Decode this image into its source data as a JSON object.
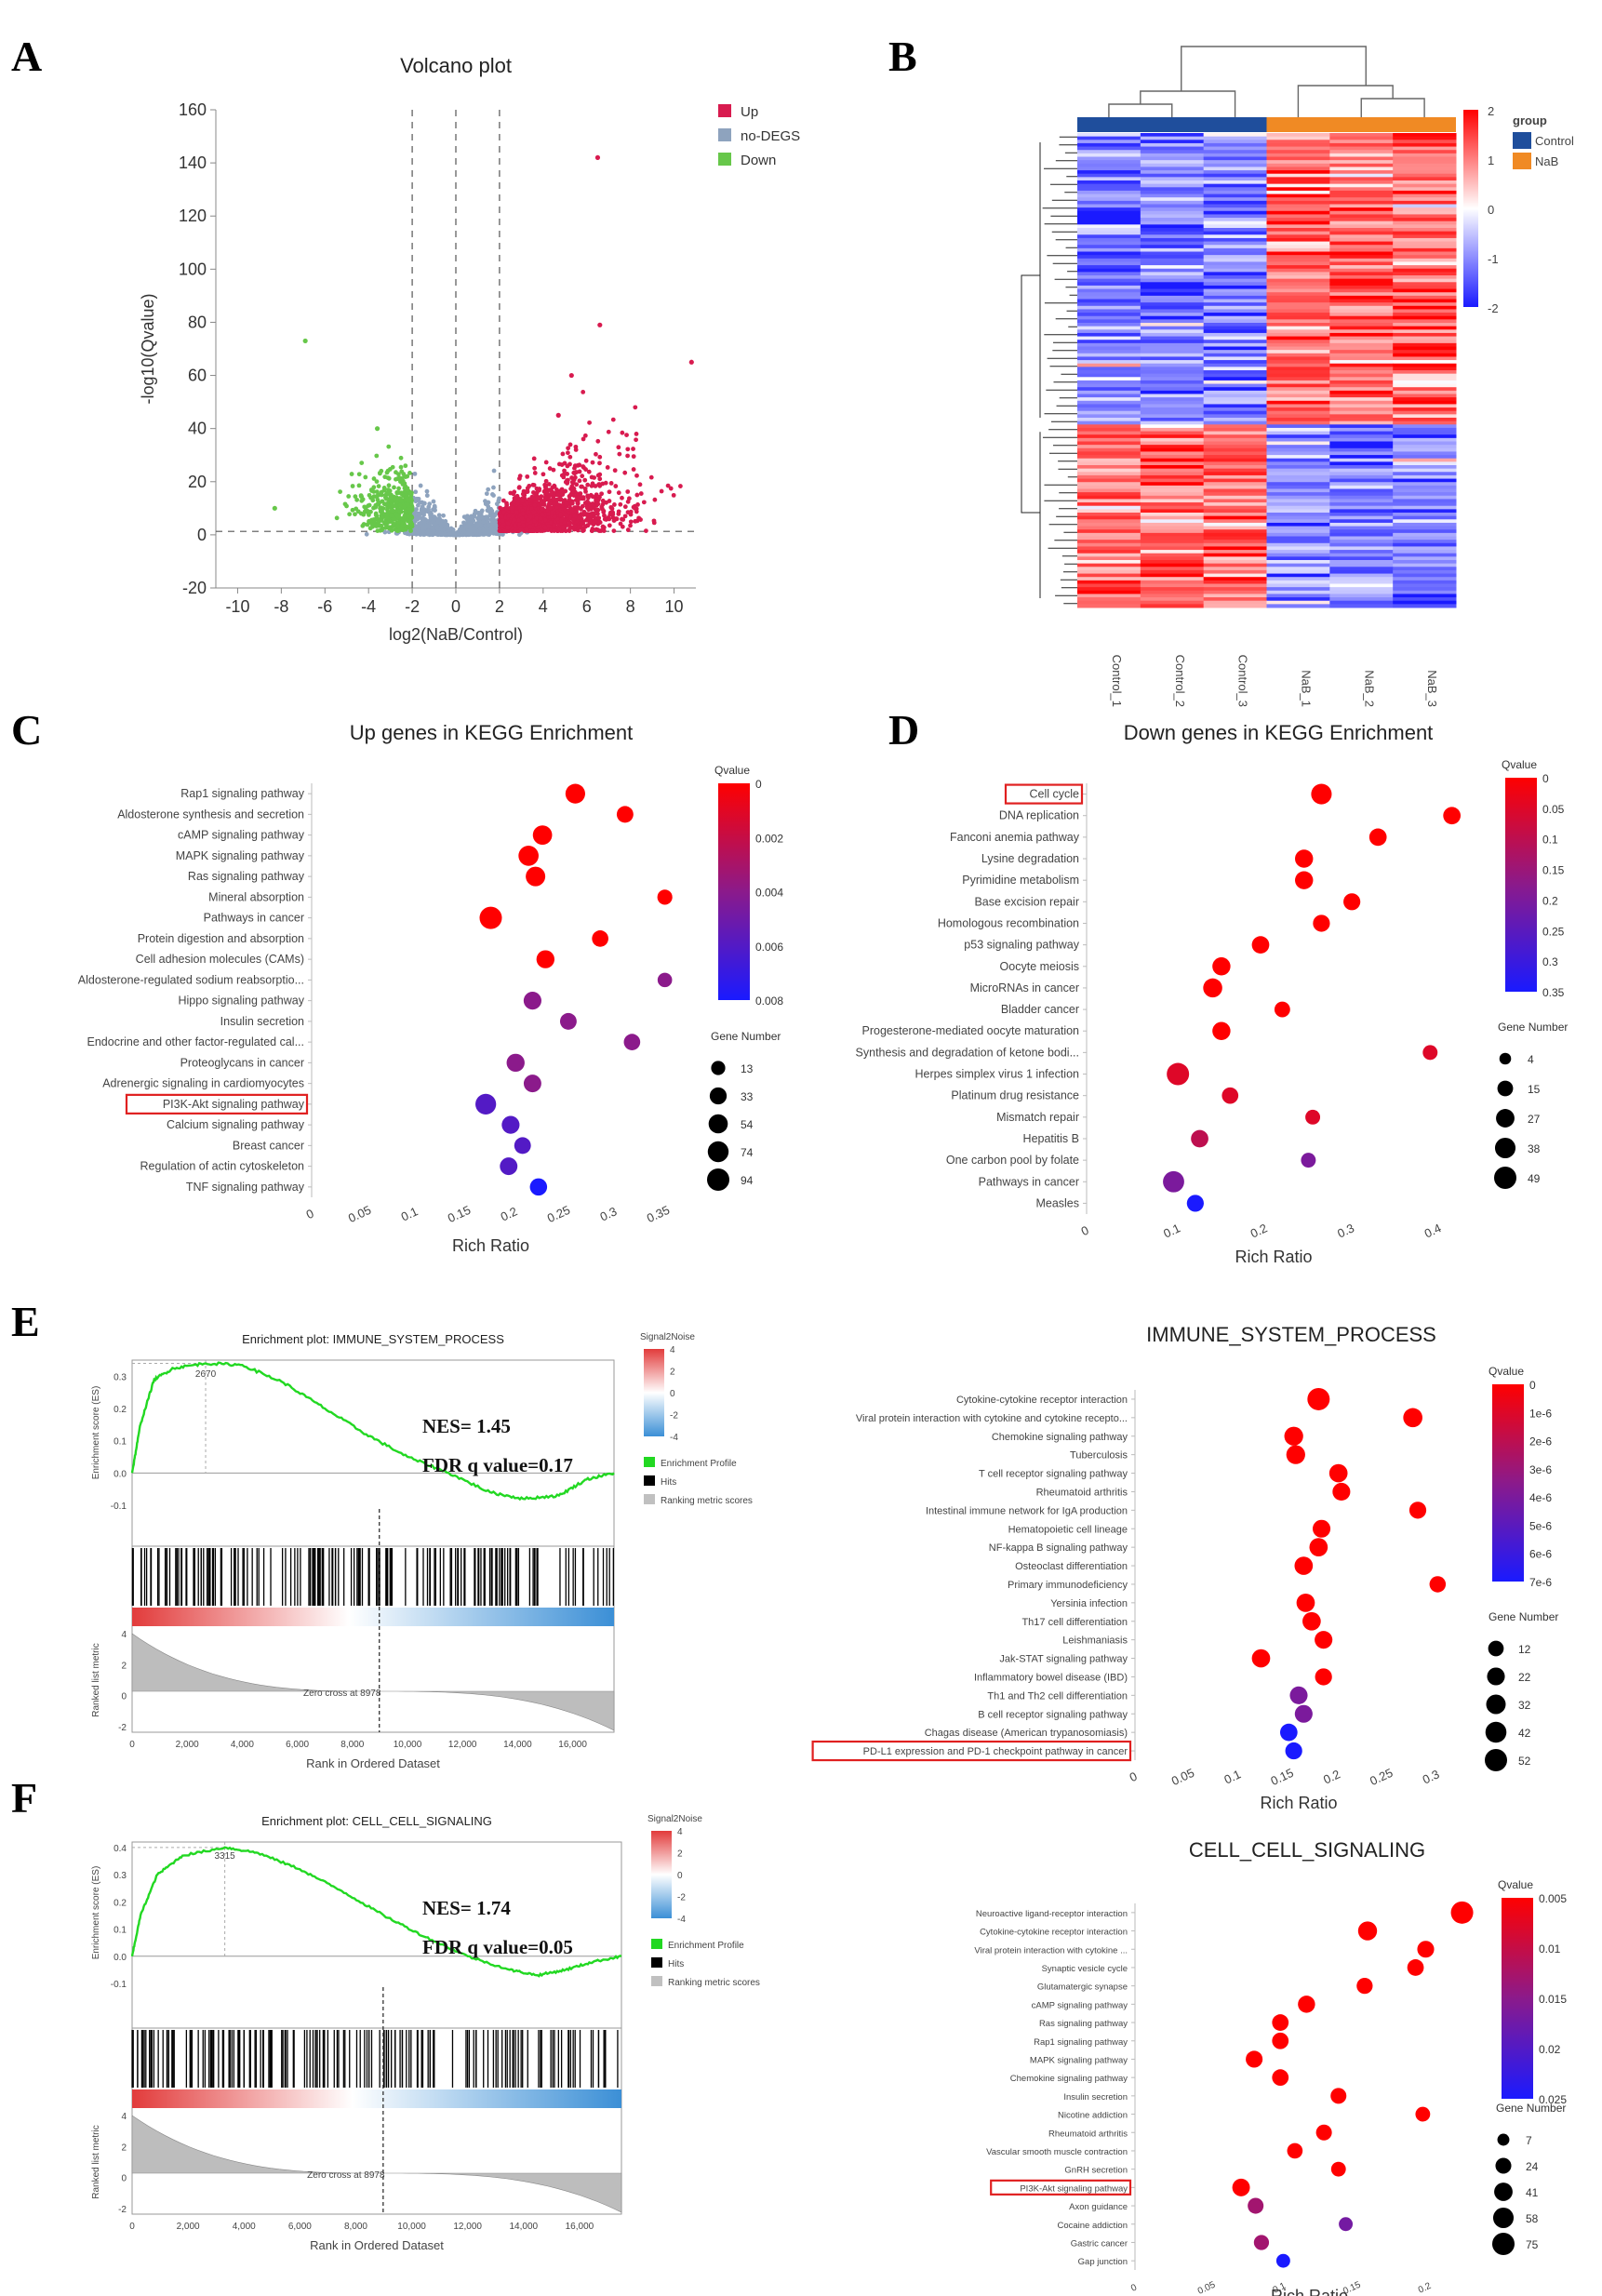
{
  "panels": [
    "A",
    "B",
    "C",
    "D",
    "E",
    "F"
  ],
  "chart_data": [
    {
      "id": "A",
      "type": "scatter",
      "title": "Volcano plot",
      "xlabel": "log2(NaB/Control)",
      "ylabel": "-log10(Qvalue)",
      "xlim": [
        -11,
        11
      ],
      "ylim": [
        -20,
        160
      ],
      "xticks": [
        -10,
        -8,
        -6,
        -4,
        -2,
        0,
        2,
        4,
        6,
        8,
        10
      ],
      "yticks": [
        -20,
        0,
        20,
        40,
        60,
        80,
        100,
        120,
        140,
        160
      ],
      "thresholds": {
        "x": [
          -2,
          2
        ],
        "y": 1.3,
        "center_x": 0
      },
      "legend": [
        {
          "label": "Up",
          "color": "#d81b4f"
        },
        {
          "label": "no-DEGS",
          "color": "#8ea3be"
        },
        {
          "label": "Down",
          "color": "#67c74a"
        }
      ],
      "outliers": {
        "up": [
          [
            6.5,
            142
          ],
          [
            6.6,
            79
          ],
          [
            10.8,
            65
          ],
          [
            5.3,
            60
          ],
          [
            4.7,
            45
          ]
        ],
        "down": [
          [
            -6.9,
            73
          ],
          [
            -3.6,
            40
          ],
          [
            -8.3,
            10
          ]
        ]
      }
    },
    {
      "id": "B",
      "type": "heatmap",
      "columns": [
        "Control_1",
        "Control_2",
        "Control_3",
        "NaB_1",
        "NaB_2",
        "NaB_3"
      ],
      "groups": [
        {
          "label": "Control",
          "color": "#1f4e9c"
        },
        {
          "label": "NaB",
          "color": "#f08a24"
        }
      ],
      "group_title": "group",
      "scale": {
        "min": -2,
        "max": 2,
        "ticks": [
          2,
          1,
          0,
          -1,
          -2
        ],
        "low": "#1a1aff",
        "mid": "#ffffff",
        "high": "#ff0000"
      }
    },
    {
      "id": "C",
      "type": "scatter",
      "title": "Up genes in KEGG Enrichment",
      "xlabel": "Rich Ratio",
      "xlim": [
        0,
        0.36
      ],
      "xticks": [
        0,
        0.05,
        0.1,
        0.15,
        0.2,
        0.25,
        0.3,
        0.35
      ],
      "categories": [
        "Rap1 signaling pathway",
        "Aldosterone synthesis and secretion",
        "cAMP signaling pathway",
        "MAPK signaling pathway",
        "Ras signaling pathway",
        "Mineral absorption",
        "Pathways in cancer",
        "Protein digestion and absorption",
        "Cell adhesion molecules (CAMs)",
        "Aldosterone-regulated sodium reabsorptio...",
        "Hippo signaling pathway",
        "Insulin secretion",
        "Endocrine and other factor-regulated cal...",
        "Proteoglycans in cancer",
        "Adrenergic signaling in cardiomyocytes",
        "PI3K-Akt signaling pathway",
        "Calcium signaling pathway",
        "Breast cancer",
        "Regulation of actin cytoskeleton",
        "TNF signaling pathway"
      ],
      "x": [
        0.265,
        0.315,
        0.232,
        0.218,
        0.225,
        0.355,
        0.18,
        0.29,
        0.235,
        0.355,
        0.222,
        0.258,
        0.322,
        0.205,
        0.222,
        0.175,
        0.2,
        0.212,
        0.198,
        0.228
      ],
      "size": [
        60,
        30,
        55,
        65,
        58,
        18,
        94,
        28,
        42,
        15,
        40,
        30,
        28,
        42,
        38,
        72,
        40,
        30,
        38,
        35
      ],
      "qvalue": [
        0,
        0,
        0,
        0,
        0,
        0,
        0,
        0,
        0,
        0.004,
        0.004,
        0.004,
        0.004,
        0.004,
        0.004,
        0.006,
        0.006,
        0.006,
        0.006,
        0.008
      ],
      "highlight": "PI3K-Akt signaling pathway",
      "qvalue_scale": {
        "ticks": [
          "0",
          "0.002",
          "0.004",
          "0.006",
          "0.008"
        ],
        "title": "Qvalue"
      },
      "size_legend": {
        "title": "Gene Number",
        "values": [
          13,
          33,
          54,
          74,
          94
        ]
      }
    },
    {
      "id": "D",
      "type": "scatter",
      "title": "Down genes in KEGG Enrichment",
      "xlabel": "Rich Ratio",
      "xlim": [
        0,
        0.43
      ],
      "xticks": [
        0,
        0.1,
        0.2,
        0.3,
        0.4
      ],
      "categories": [
        "Cell cycle",
        "DNA replication",
        "Fanconi anemia pathway",
        "Lysine degradation",
        "Pyrimidine metabolism",
        "Base excision repair",
        "Homologous recombination",
        "p53 signaling pathway",
        "Oocyte meiosis",
        "MicroRNAs in cancer",
        "Bladder cancer",
        "Progesterone-mediated oocyte maturation",
        "Synthesis and degradation of ketone bodi...",
        "Herpes simplex virus 1 infection",
        "Platinum drug resistance",
        "Mismatch repair",
        "Hepatitis B",
        "One carbon pool by folate",
        "Pathways in cancer",
        "Measles"
      ],
      "x": [
        0.27,
        0.42,
        0.335,
        0.25,
        0.25,
        0.305,
        0.27,
        0.2,
        0.155,
        0.145,
        0.225,
        0.155,
        0.395,
        0.105,
        0.165,
        0.26,
        0.13,
        0.255,
        0.1,
        0.125
      ],
      "size": [
        38,
        22,
        22,
        25,
        25,
        20,
        20,
        22,
        25,
        30,
        15,
        25,
        12,
        49,
        18,
        12,
        22,
        12,
        42,
        20
      ],
      "qvalue": [
        0,
        0,
        0,
        0,
        0,
        0,
        0,
        0,
        0,
        0,
        0,
        0,
        0.05,
        0.05,
        0.05,
        0.05,
        0.1,
        0.2,
        0.2,
        0.35
      ],
      "highlight": "Cell cycle",
      "qvalue_scale": {
        "ticks": [
          "0",
          "0.05",
          "0.1",
          "0.15",
          "0.2",
          "0.25",
          "0.3",
          "0.35"
        ],
        "title": "Qvalue"
      },
      "size_legend": {
        "title": "Gene Number",
        "values": [
          4,
          15,
          27,
          38,
          49
        ]
      }
    },
    {
      "id": "E-GSEA",
      "type": "line",
      "title": "Enrichment plot: IMMUNE_SYSTEM_PROCESS",
      "ylabel": "Enrichment score (ES)",
      "ylabel2": "Ranked list metric",
      "xlabel": "Rank in Ordered Dataset",
      "xticks": [
        "0",
        "2,000",
        "4,000",
        "6,000",
        "8,000",
        "10,000",
        "12,000",
        "14,000",
        "16,000"
      ],
      "yticks": [
        "0.3",
        "0.2",
        "0.1",
        "0.0",
        "-0.1"
      ],
      "yticks2": [
        "4",
        "2",
        "0",
        "-2"
      ],
      "peak_label": "2670",
      "peak_rank": 2670,
      "zero_cross": "Zero cross at 8978",
      "NES": "NES= 1.45",
      "FDR": "FDR q value=0.17",
      "es_curve": [
        [
          0,
          0
        ],
        [
          300,
          0.15
        ],
        [
          800,
          0.29
        ],
        [
          1500,
          0.325
        ],
        [
          2670,
          0.34
        ],
        [
          4000,
          0.335
        ],
        [
          5500,
          0.28
        ],
        [
          7000,
          0.2
        ],
        [
          8500,
          0.12
        ],
        [
          10000,
          0.05
        ],
        [
          11500,
          0.0
        ],
        [
          13000,
          -0.06
        ],
        [
          14200,
          -0.08
        ],
        [
          15500,
          -0.07
        ],
        [
          16500,
          -0.02
        ],
        [
          17500,
          0
        ]
      ],
      "legend": [
        {
          "label": "Enrichment Profile",
          "color": "#22d822"
        },
        {
          "label": "Hits",
          "color": "#000000"
        },
        {
          "label": "Ranking metric scores",
          "color": "#c0c0c0"
        }
      ],
      "colorbar": {
        "title": "Signal2Noise",
        "ticks": [
          "4",
          "2",
          "0",
          "-2",
          "-4"
        ]
      }
    },
    {
      "id": "E-dot",
      "type": "scatter",
      "title": "IMMUNE_SYSTEM_PROCESS",
      "xlabel": "Rich Ratio",
      "xlim": [
        0,
        0.33
      ],
      "xticks": [
        0,
        0.05,
        0.1,
        0.15,
        0.2,
        0.25,
        0.3
      ],
      "categories": [
        "Cytokine-cytokine receptor interaction",
        "Viral protein interaction with cytokine and cytokine recepto...",
        "Chemokine signaling pathway",
        "Tuberculosis",
        "T cell receptor signaling pathway",
        "Rheumatoid arthritis",
        "Intestinal immune network for IgA production",
        "Hematopoietic cell lineage",
        "NF-kappa B signaling pathway",
        "Osteoclast differentiation",
        "Primary immunodeficiency",
        "Yersinia infection",
        "Th17 cell differentiation",
        "Leishmaniasis",
        "Jak-STAT signaling pathway",
        "Inflammatory bowel disease (IBD)",
        "Th1 and Th2 cell differentiation",
        "B cell receptor signaling pathway",
        "Chagas disease (American trypanosomiasis)",
        "PD-L1 expression and PD-1 checkpoint pathway in cancer"
      ],
      "x": [
        0.185,
        0.28,
        0.16,
        0.162,
        0.205,
        0.208,
        0.285,
        0.188,
        0.185,
        0.17,
        0.305,
        0.172,
        0.178,
        0.19,
        0.127,
        0.19,
        0.165,
        0.17,
        0.155,
        0.16
      ],
      "size": [
        52,
        30,
        28,
        28,
        25,
        22,
        18,
        22,
        25,
        25,
        15,
        25,
        25,
        22,
        25,
        18,
        22,
        22,
        20,
        18
      ],
      "qvalue": [
        0,
        0,
        0,
        0,
        0,
        0,
        0,
        0,
        0,
        0,
        0,
        0,
        0,
        0,
        0,
        0,
        4e-06,
        4e-06,
        7e-06,
        7e-06
      ],
      "highlight": "PD-L1 expression and PD-1 checkpoint pathway in cancer",
      "qvalue_scale": {
        "ticks": [
          "0",
          "1e-6",
          "2e-6",
          "3e-6",
          "4e-6",
          "5e-6",
          "6e-6",
          "7e-6"
        ],
        "title": "Qvalue"
      },
      "size_legend": {
        "title": "Gene Number",
        "values": [
          12,
          22,
          32,
          42,
          52
        ]
      }
    },
    {
      "id": "F-GSEA",
      "type": "line",
      "title": "Enrichment plot: CELL_CELL_SIGNALING",
      "ylabel": "Enrichment score (ES)",
      "ylabel2": "Ranked list metric",
      "xlabel": "Rank in Ordered Dataset",
      "xticks": [
        "0",
        "2,000",
        "4,000",
        "6,000",
        "8,000",
        "10,000",
        "12,000",
        "14,000",
        "16,000"
      ],
      "yticks": [
        "0.4",
        "0.3",
        "0.2",
        "0.1",
        "0.0",
        "-0.1"
      ],
      "yticks2": [
        "4",
        "2",
        "0",
        "-2"
      ],
      "peak_label": "3315",
      "peak_rank": 3315,
      "zero_cross": "Zero cross at 8978",
      "NES": "NES= 1.74",
      "FDR": "FDR q value=0.05",
      "es_curve": [
        [
          0,
          0
        ],
        [
          300,
          0.15
        ],
        [
          900,
          0.3
        ],
        [
          1800,
          0.37
        ],
        [
          3315,
          0.4
        ],
        [
          4500,
          0.38
        ],
        [
          6000,
          0.32
        ],
        [
          7500,
          0.24
        ],
        [
          9000,
          0.15
        ],
        [
          10500,
          0.07
        ],
        [
          12000,
          0.0
        ],
        [
          13500,
          -0.05
        ],
        [
          14500,
          -0.07
        ],
        [
          15500,
          -0.05
        ],
        [
          16500,
          -0.02
        ],
        [
          17500,
          0
        ]
      ],
      "legend": [
        {
          "label": "Enrichment Profile",
          "color": "#22d822"
        },
        {
          "label": "Hits",
          "color": "#000000"
        },
        {
          "label": "Ranking metric scores",
          "color": "#c0c0c0"
        }
      ],
      "colorbar": {
        "title": "Signal2Noise",
        "ticks": [
          "4",
          "2",
          "0",
          "-2",
          "-4"
        ]
      }
    },
    {
      "id": "F-dot",
      "type": "scatter",
      "title": "CELL_CELL_SIGNALING",
      "xlabel": "Rich Ratio",
      "xlim": [
        0,
        0.24
      ],
      "xticks": [
        0,
        0.05,
        0.1,
        0.15,
        0.2
      ],
      "categories": [
        "Neuroactive ligand-receptor interaction",
        "Cytokine-cytokine receptor interaction",
        "Viral protein interaction with cytokine ...",
        "Synaptic vesicle cycle",
        "Glutamatergic synapse",
        "cAMP signaling pathway",
        "Ras signaling pathway",
        "Rap1 signaling pathway",
        "MAPK signaling pathway",
        "Chemokine signaling pathway",
        "Insulin secretion",
        "Nicotine addiction",
        "Rheumatoid arthritis",
        "Vascular smooth muscle contraction",
        "GnRH secretion",
        "PI3K-Akt signaling pathway",
        "Axon guidance",
        "Cocaine addiction",
        "Gastric cancer",
        "Gap junction"
      ],
      "x": [
        0.225,
        0.16,
        0.2,
        0.193,
        0.158,
        0.118,
        0.1,
        0.1,
        0.082,
        0.1,
        0.14,
        0.198,
        0.13,
        0.11,
        0.14,
        0.073,
        0.083,
        0.145,
        0.087,
        0.102
      ],
      "size": [
        75,
        45,
        30,
        28,
        25,
        32,
        28,
        28,
        30,
        28,
        24,
        18,
        24,
        22,
        18,
        35,
        24,
        14,
        20,
        14
      ],
      "qvalue": [
        0,
        0,
        0,
        0,
        0,
        0,
        0,
        0,
        0,
        0,
        0,
        0,
        0,
        0,
        0,
        0,
        0.01,
        0.015,
        0.01,
        0.025
      ],
      "highlight": "PI3K-Akt signaling pathway",
      "qvalue_scale": {
        "ticks": [
          "0.005",
          "0.01",
          "0.015",
          "0.02",
          "0.025"
        ],
        "title": "Qvalue"
      },
      "size_legend": {
        "title": "Gene Number",
        "values": [
          7,
          24,
          41,
          58,
          75
        ]
      }
    }
  ]
}
